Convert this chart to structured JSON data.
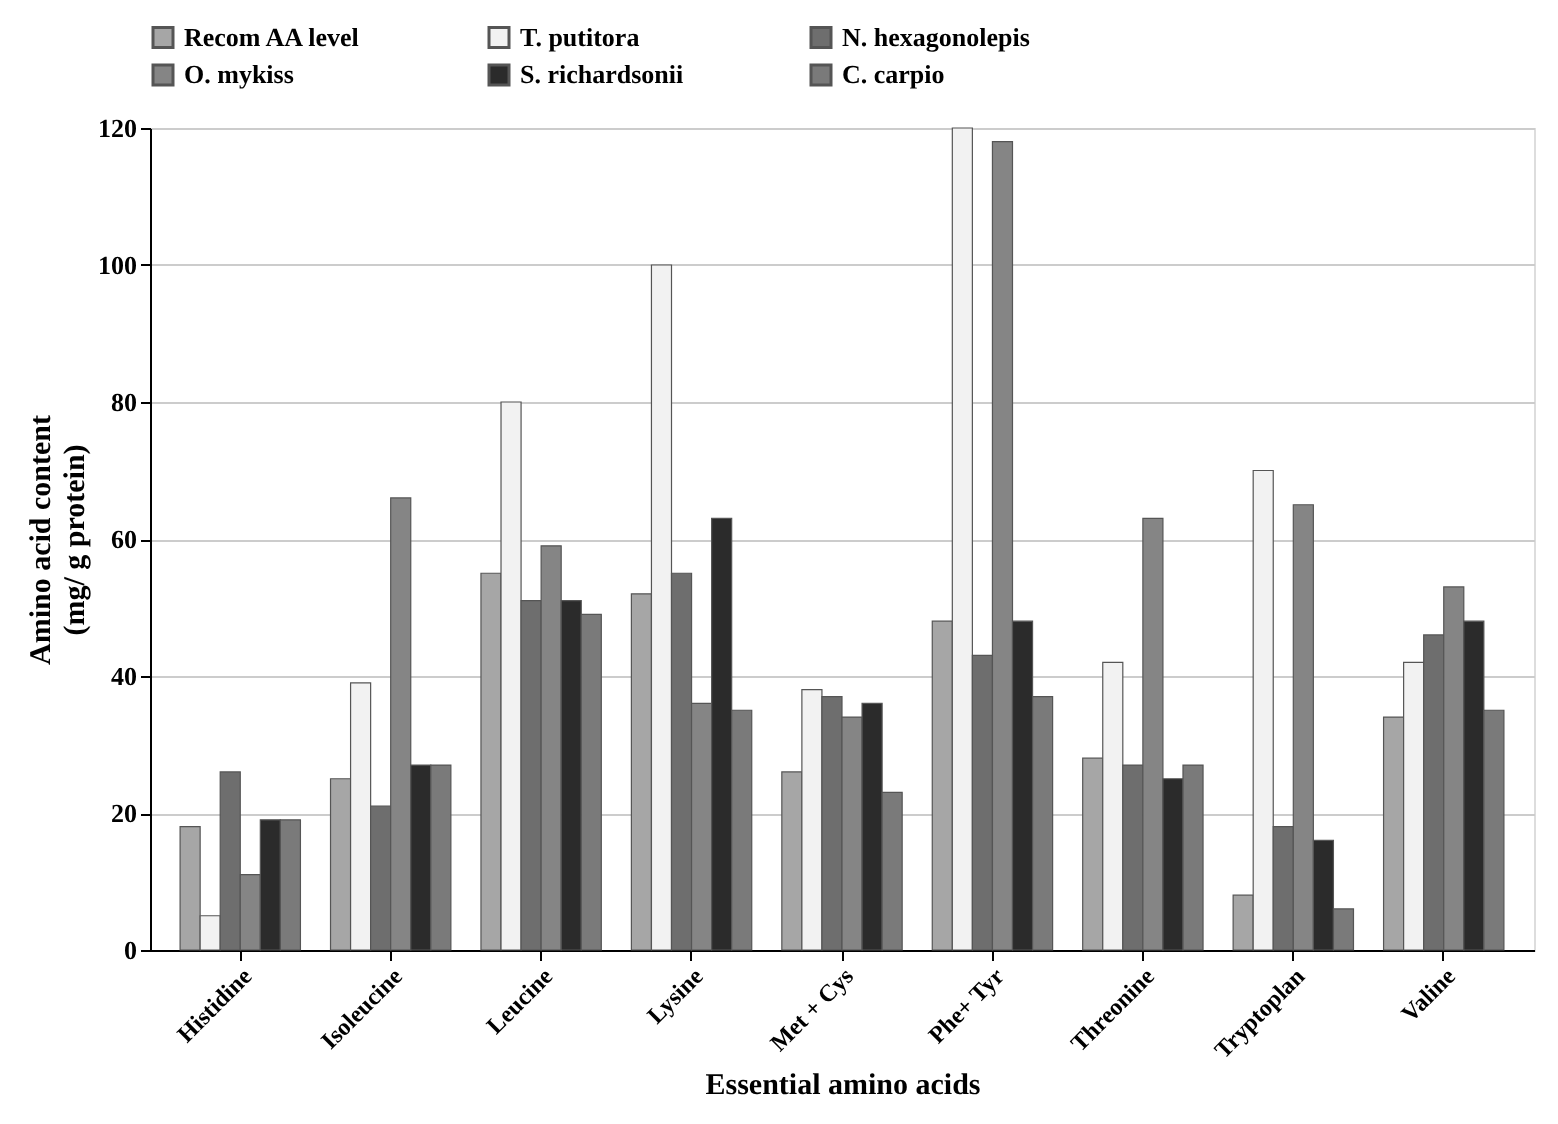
{
  "chart_data": {
    "type": "bar",
    "xlabel": "Essential amino acids",
    "ylabel": "Amino acid content\n(mg/ g protein)",
    "categories": [
      "Histidine",
      "Isoleucine",
      "Leucine",
      "Lysine",
      "Met + Cys",
      "Phe+ Tyr",
      "Threonine",
      "Tryptoplan",
      "Valine"
    ],
    "series": [
      {
        "name": "Recom AA level",
        "color": "#a6a6a6",
        "values": [
          18,
          25,
          55,
          52,
          26,
          48,
          28,
          8,
          34
        ]
      },
      {
        "name": "T. putitora",
        "color": "#f2f2f2",
        "values": [
          5,
          39,
          80,
          100,
          38,
          120,
          42,
          70,
          42
        ]
      },
      {
        "name": "N. hexagonolepis",
        "color": "#6e6e6e",
        "values": [
          26,
          21,
          51,
          55,
          37,
          43,
          27,
          18,
          46
        ]
      },
      {
        "name": "O. mykiss",
        "color": "#858585",
        "values": [
          11,
          66,
          59,
          36,
          34,
          118,
          63,
          65,
          53
        ]
      },
      {
        "name": "S. richardsonii",
        "color": "#2b2b2b",
        "values": [
          19,
          27,
          51,
          63,
          36,
          48,
          25,
          16,
          48
        ]
      },
      {
        "name": "C. carpio",
        "color": "#7a7a7a",
        "values": [
          19,
          27,
          49,
          35,
          23,
          37,
          27,
          6,
          35
        ]
      }
    ],
    "ylim": [
      0,
      120
    ],
    "yticks": [
      0,
      20,
      40,
      60,
      80,
      100,
      120
    ],
    "grid": "y",
    "legend": "top"
  }
}
